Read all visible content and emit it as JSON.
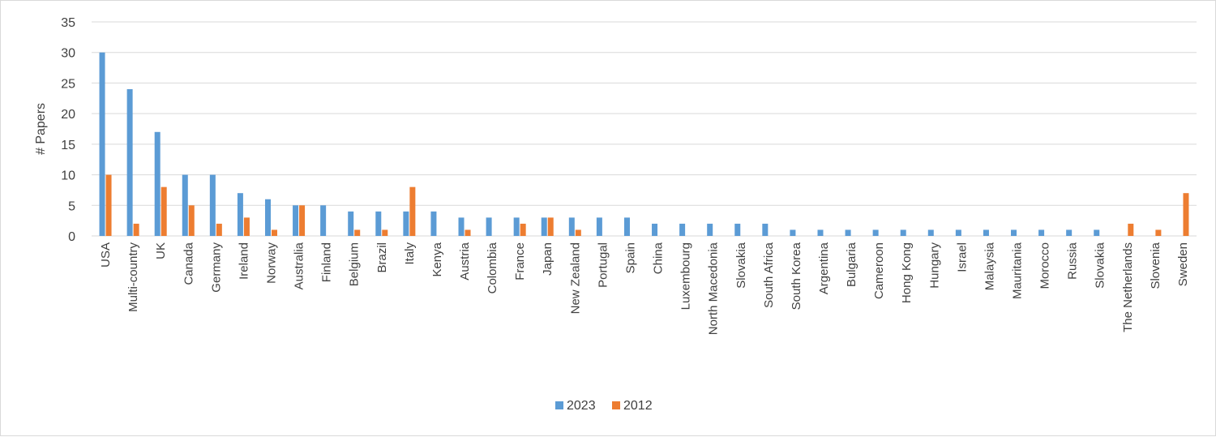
{
  "chart_data": {
    "type": "bar",
    "title": "",
    "xlabel": "",
    "ylabel": "# Papers",
    "ylim": [
      0,
      35
    ],
    "yticks": [
      0,
      5,
      10,
      15,
      20,
      25,
      30,
      35
    ],
    "grid": "horizontal",
    "legend_position": "bottom",
    "categories": [
      "USA",
      "Multi-country",
      "UK",
      "Canada",
      "Germany",
      "Ireland",
      "Norway",
      "Australia",
      "Finland",
      "Belgium",
      "Brazil",
      "Italy",
      "Kenya",
      "Austria",
      "Colombia",
      "France",
      "Japan",
      "New Zealand",
      "Portugal",
      "Spain",
      "China",
      "Luxembourg",
      "North Macedonia",
      "Slovakia",
      "South Africa",
      "South Korea",
      "Argentina",
      "Bulgaria",
      "Cameroon",
      "Hong Kong",
      "Hungary",
      "Israel",
      "Malaysia",
      "Mauritania",
      "Morocco",
      "Russia",
      "Slovakia",
      "The Netherlands",
      "Slovenia",
      "Sweden"
    ],
    "series": [
      {
        "name": "2023",
        "color": "#5b9bd5",
        "values": [
          30,
          24,
          17,
          10,
          10,
          7,
          6,
          5,
          5,
          4,
          4,
          4,
          4,
          3,
          3,
          3,
          3,
          3,
          3,
          3,
          2,
          2,
          2,
          2,
          2,
          1,
          1,
          1,
          1,
          1,
          1,
          1,
          1,
          1,
          1,
          1,
          1,
          0,
          0,
          0
        ]
      },
      {
        "name": "2012",
        "color": "#ed7d31",
        "values": [
          10,
          2,
          8,
          5,
          2,
          3,
          1,
          5,
          0,
          1,
          1,
          8,
          0,
          1,
          0,
          2,
          3,
          1,
          0,
          0,
          0,
          0,
          0,
          0,
          0,
          0,
          0,
          0,
          0,
          0,
          0,
          0,
          0,
          0,
          0,
          0,
          0,
          2,
          1,
          7
        ]
      }
    ]
  }
}
